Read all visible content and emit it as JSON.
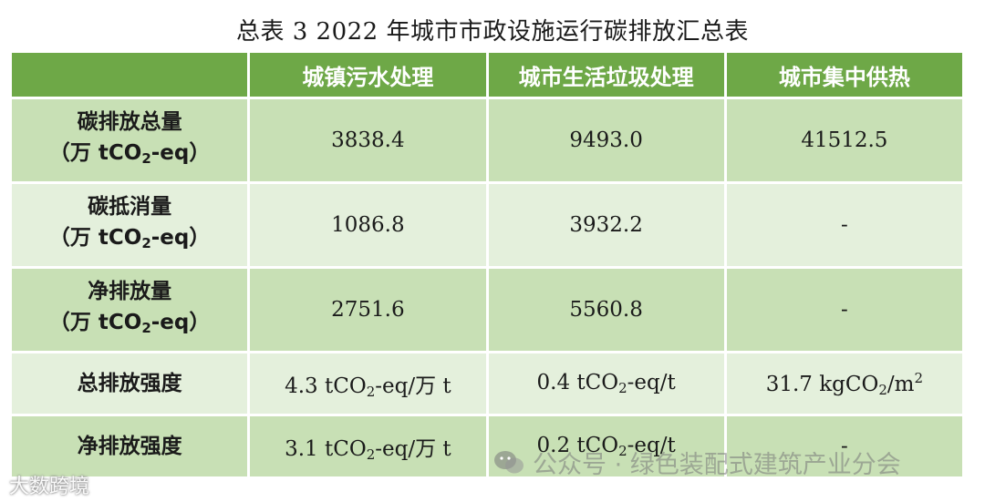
{
  "title": "总表 3 2022 年城市市政设施运行碳排放汇总表",
  "header": {
    "corner": "",
    "col1": "城镇污水处理",
    "col2": "城市生活垃圾处理",
    "col3": "城市集中供热"
  },
  "rows": [
    {
      "label_line1": "碳排放总量",
      "label_line2_pre": "（万 tCO",
      "label_line2_sub": "2",
      "label_line2_post": "-eq）",
      "c1": "3838.4",
      "c2": "9493.0",
      "c3": "41512.5"
    },
    {
      "label_line1": "碳抵消量",
      "label_line2_pre": "（万 tCO",
      "label_line2_sub": "2",
      "label_line2_post": "-eq）",
      "c1": "1086.8",
      "c2": "3932.2",
      "c3": "-"
    },
    {
      "label_line1": "净排放量",
      "label_line2_pre": "（万 tCO",
      "label_line2_sub": "2",
      "label_line2_post": "-eq）",
      "c1": "2751.6",
      "c2": "5560.8",
      "c3": "-"
    },
    {
      "label": "总排放强度",
      "c1_pre": "4.3 tCO",
      "c1_sub": "2",
      "c1_post": "-eq/万 t",
      "c2_pre": "0.4 tCO",
      "c2_sub": "2",
      "c2_post": "-eq/t",
      "c3_pre": "31.7 kgCO",
      "c3_sub": "2",
      "c3_mid": "/m",
      "c3_sup": "2"
    },
    {
      "label": "净排放强度",
      "c1_pre": "3.1 tCO",
      "c1_sub": "2",
      "c1_post": "-eq/万 t",
      "c2_pre": "0.2 tCO",
      "c2_sub": "2",
      "c2_post": "-eq/t",
      "c3": "-"
    }
  ],
  "watermark": {
    "icon": "wechat-icon",
    "text": "公众号 · 绿色装配式建筑产业分会"
  },
  "badge": {
    "text": "大数跨境"
  },
  "colors": {
    "header_bg": "#6ea847",
    "row_odd": "#c8e0b5",
    "row_even": "#e4f0dc"
  }
}
